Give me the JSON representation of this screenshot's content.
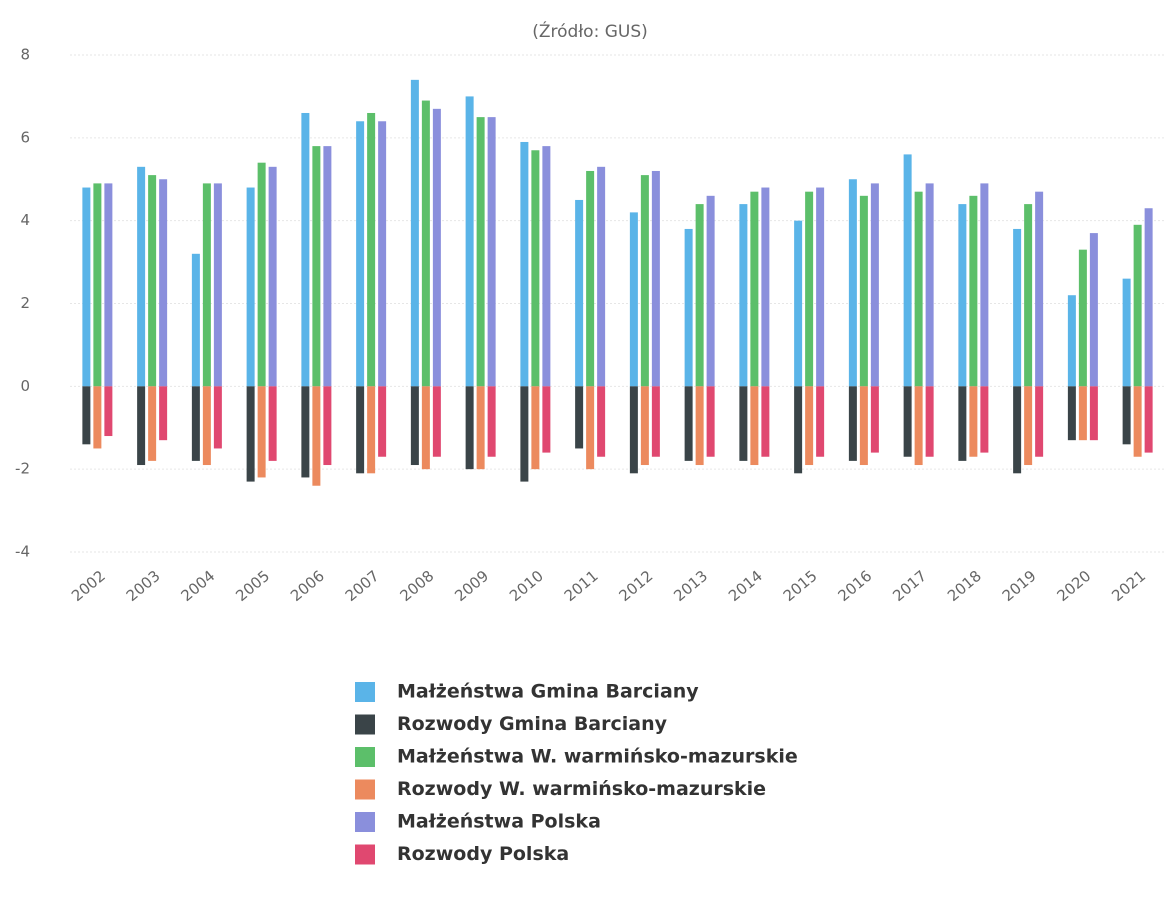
{
  "chart_data": {
    "type": "bar",
    "title": "(Źródło: GUS)",
    "categories": [
      "2002",
      "2003",
      "2004",
      "2005",
      "2006",
      "2007",
      "2008",
      "2009",
      "2010",
      "2011",
      "2012",
      "2013",
      "2014",
      "2015",
      "2016",
      "2017",
      "2018",
      "2019",
      "2020",
      "2021"
    ],
    "ylim": [
      -4,
      8
    ],
    "yticks": [
      -4,
      -2,
      0,
      2,
      4,
      6,
      8
    ],
    "grid": true,
    "series": [
      {
        "name": "Małżeństwa Gmina Barciany",
        "color": "#5ab4e8",
        "values": [
          4.8,
          5.3,
          3.2,
          4.8,
          6.6,
          6.4,
          7.4,
          7.0,
          5.9,
          4.5,
          4.2,
          3.8,
          4.4,
          4.0,
          5.0,
          5.6,
          4.4,
          3.8,
          2.2,
          2.6
        ]
      },
      {
        "name": "Rozwody Gmina Barciany",
        "color": "#3a4448",
        "values": [
          -1.4,
          -1.9,
          -1.8,
          -2.3,
          -2.2,
          -2.1,
          -1.9,
          -2.0,
          -2.3,
          -1.5,
          -2.1,
          -1.8,
          -1.8,
          -2.1,
          -1.8,
          -1.7,
          -1.8,
          -2.1,
          -1.3,
          -1.4
        ]
      },
      {
        "name": "Małżeństwa W. warmińsko-mazurskie",
        "color": "#5cbf6a",
        "values": [
          4.9,
          5.1,
          4.9,
          5.4,
          5.8,
          6.6,
          6.9,
          6.5,
          5.7,
          5.2,
          5.1,
          4.4,
          4.7,
          4.7,
          4.6,
          4.7,
          4.6,
          4.4,
          3.3,
          3.9
        ]
      },
      {
        "name": "Rozwody W. warmińsko-mazurskie",
        "color": "#ec8a5e",
        "values": [
          -1.5,
          -1.8,
          -1.9,
          -2.2,
          -2.4,
          -2.1,
          -2.0,
          -2.0,
          -2.0,
          -2.0,
          -1.9,
          -1.9,
          -1.9,
          -1.9,
          -1.9,
          -1.9,
          -1.7,
          -1.9,
          -1.3,
          -1.7
        ]
      },
      {
        "name": "Małżeństwa Polska",
        "color": "#8a8fdc",
        "values": [
          4.9,
          5.0,
          4.9,
          5.3,
          5.8,
          6.4,
          6.7,
          6.5,
          5.8,
          5.3,
          5.2,
          4.6,
          4.8,
          4.8,
          4.9,
          4.9,
          4.9,
          4.7,
          3.7,
          4.3
        ]
      },
      {
        "name": "Rozwody Polska",
        "color": "#e04870",
        "values": [
          -1.2,
          -1.3,
          -1.5,
          -1.8,
          -1.9,
          -1.7,
          -1.7,
          -1.7,
          -1.6,
          -1.7,
          -1.7,
          -1.7,
          -1.7,
          -1.7,
          -1.6,
          -1.7,
          -1.6,
          -1.7,
          -1.3,
          -1.6
        ]
      }
    ]
  }
}
